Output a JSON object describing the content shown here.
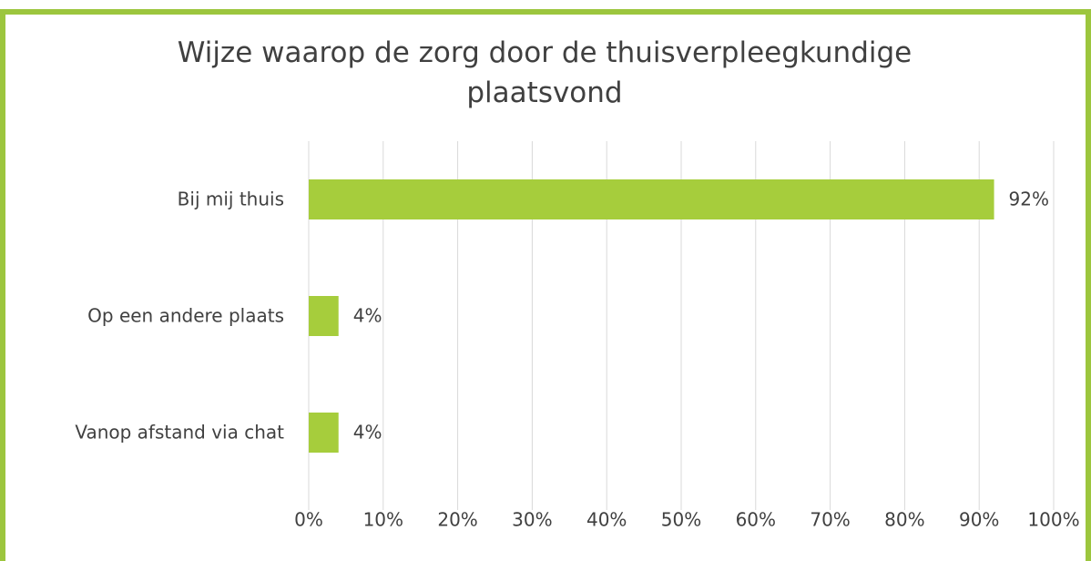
{
  "chart_data": {
    "type": "bar",
    "orientation": "horizontal",
    "title": "Wijze waarop de zorg door de thuisverpleegkundige plaatsvond",
    "categories": [
      "Bij mij thuis",
      "Op een andere plaats",
      "Vanop afstand via chat"
    ],
    "values": [
      92,
      4,
      4
    ],
    "value_labels": [
      "92%",
      "4%",
      "4%"
    ],
    "color": "#a6cd3c",
    "xlim": [
      0,
      100
    ],
    "xticks": [
      {
        "value": 0,
        "label": "0%"
      },
      {
        "value": 10,
        "label": "10%"
      },
      {
        "value": 20,
        "label": "20%"
      },
      {
        "value": 30,
        "label": "30%"
      },
      {
        "value": 40,
        "label": "40%"
      },
      {
        "value": 50,
        "label": "50%"
      },
      {
        "value": 60,
        "label": "60%"
      },
      {
        "value": 70,
        "label": "70%"
      },
      {
        "value": 80,
        "label": "80%"
      },
      {
        "value": 90,
        "label": "90%"
      },
      {
        "value": 100,
        "label": "100%"
      }
    ],
    "grid": true
  }
}
